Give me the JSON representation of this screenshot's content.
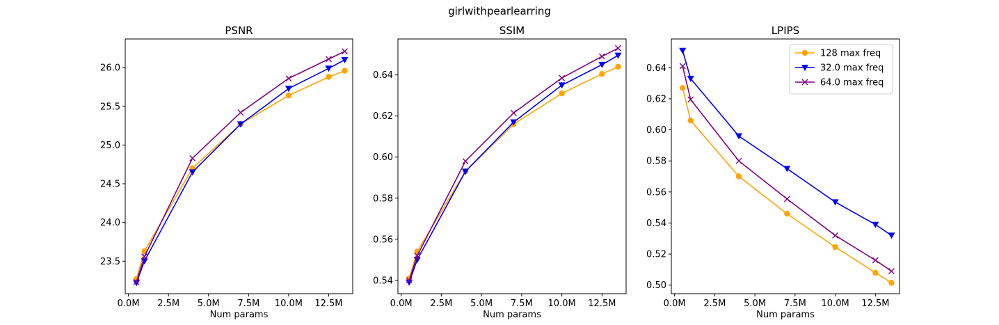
{
  "figure": {
    "suptitle": "girlwithpearlearring"
  },
  "chart_data": [
    {
      "type": "line",
      "title": "PSNR",
      "xlabel": "Num params",
      "ylabel": "",
      "xlim": [
        -0.2,
        14.0
      ],
      "ylim": [
        23.08,
        26.37
      ],
      "x_ticks": [
        0,
        2.5,
        5,
        7.5,
        10,
        12.5
      ],
      "x_tick_labels": [
        "0.0M",
        "2.5M",
        "5.0M",
        "7.5M",
        "10.0M",
        "12.5M"
      ],
      "y_ticks": [
        23.5,
        24.0,
        24.5,
        25.0,
        25.5,
        26.0
      ],
      "y_tick_labels": [
        "23.5",
        "24.0",
        "24.5",
        "25.0",
        "25.5",
        "26.0"
      ],
      "legend": null,
      "grid": false,
      "x": [
        0.5,
        1.0,
        4.0,
        7.0,
        10.0,
        12.5,
        13.5
      ],
      "series": [
        {
          "name": "128 max freq",
          "color": "#ffa500",
          "marker": "circle",
          "values": [
            23.27,
            23.63,
            24.7,
            25.27,
            25.64,
            25.88,
            25.96
          ]
        },
        {
          "name": "32.0 max freq",
          "color": "#0000ff",
          "marker": "triangle-down",
          "values": [
            23.22,
            23.5,
            24.65,
            25.27,
            25.73,
            25.99,
            26.1
          ]
        },
        {
          "name": "64.0 max freq",
          "color": "#800080",
          "marker": "x",
          "values": [
            23.23,
            23.56,
            24.83,
            25.42,
            25.86,
            26.11,
            26.21
          ]
        }
      ]
    },
    {
      "type": "line",
      "title": "SSIM",
      "xlabel": "Num params",
      "ylabel": "",
      "xlim": [
        -0.2,
        14.0
      ],
      "ylim": [
        0.5335,
        0.6575
      ],
      "x_ticks": [
        0,
        2.5,
        5,
        7.5,
        10,
        12.5
      ],
      "x_tick_labels": [
        "0.0M",
        "2.5M",
        "5.0M",
        "7.5M",
        "10.0M",
        "12.5M"
      ],
      "y_ticks": [
        0.54,
        0.56,
        0.58,
        0.6,
        0.62,
        0.64
      ],
      "y_tick_labels": [
        "0.54",
        "0.56",
        "0.58",
        "0.60",
        "0.62",
        "0.64"
      ],
      "legend": null,
      "grid": false,
      "x": [
        0.5,
        1.0,
        4.0,
        7.0,
        10.0,
        12.5,
        13.5
      ],
      "series": [
        {
          "name": "128 max freq",
          "color": "#ffa500",
          "marker": "circle",
          "values": [
            0.541,
            0.554,
            0.593,
            0.616,
            0.631,
            0.6405,
            0.644
          ]
        },
        {
          "name": "32.0 max freq",
          "color": "#0000ff",
          "marker": "triangle-down",
          "values": [
            0.539,
            0.55,
            0.593,
            0.617,
            0.635,
            0.645,
            0.6495
          ]
        },
        {
          "name": "64.0 max freq",
          "color": "#800080",
          "marker": "x",
          "values": [
            0.54,
            0.552,
            0.598,
            0.6215,
            0.6385,
            0.649,
            0.653
          ]
        }
      ]
    },
    {
      "type": "line",
      "title": "LPIPS",
      "xlabel": "Num params",
      "ylabel": "",
      "xlim": [
        -0.2,
        14.0
      ],
      "ylim": [
        0.4945,
        0.6585
      ],
      "x_ticks": [
        0,
        2.5,
        5,
        7.5,
        10,
        12.5
      ],
      "x_tick_labels": [
        "0.0M",
        "2.5M",
        "5.0M",
        "7.5M",
        "10.0M",
        "12.5M"
      ],
      "y_ticks": [
        0.5,
        0.52,
        0.54,
        0.56,
        0.58,
        0.6,
        0.62,
        0.64
      ],
      "y_tick_labels": [
        "0.50",
        "0.52",
        "0.54",
        "0.56",
        "0.58",
        "0.60",
        "0.62",
        "0.64"
      ],
      "legend": "top-right",
      "grid": false,
      "x": [
        0.5,
        1.0,
        4.0,
        7.0,
        10.0,
        12.5,
        13.5
      ],
      "series": [
        {
          "name": "128 max freq",
          "color": "#ffa500",
          "marker": "circle",
          "values": [
            0.627,
            0.606,
            0.57,
            0.546,
            0.5245,
            0.508,
            0.5015
          ]
        },
        {
          "name": "32.0 max freq",
          "color": "#0000ff",
          "marker": "triangle-down",
          "values": [
            0.651,
            0.633,
            0.596,
            0.575,
            0.5535,
            0.539,
            0.532
          ]
        },
        {
          "name": "64.0 max freq",
          "color": "#800080",
          "marker": "x",
          "values": [
            0.641,
            0.6195,
            0.58,
            0.5555,
            0.532,
            0.516,
            0.509
          ]
        }
      ]
    }
  ]
}
